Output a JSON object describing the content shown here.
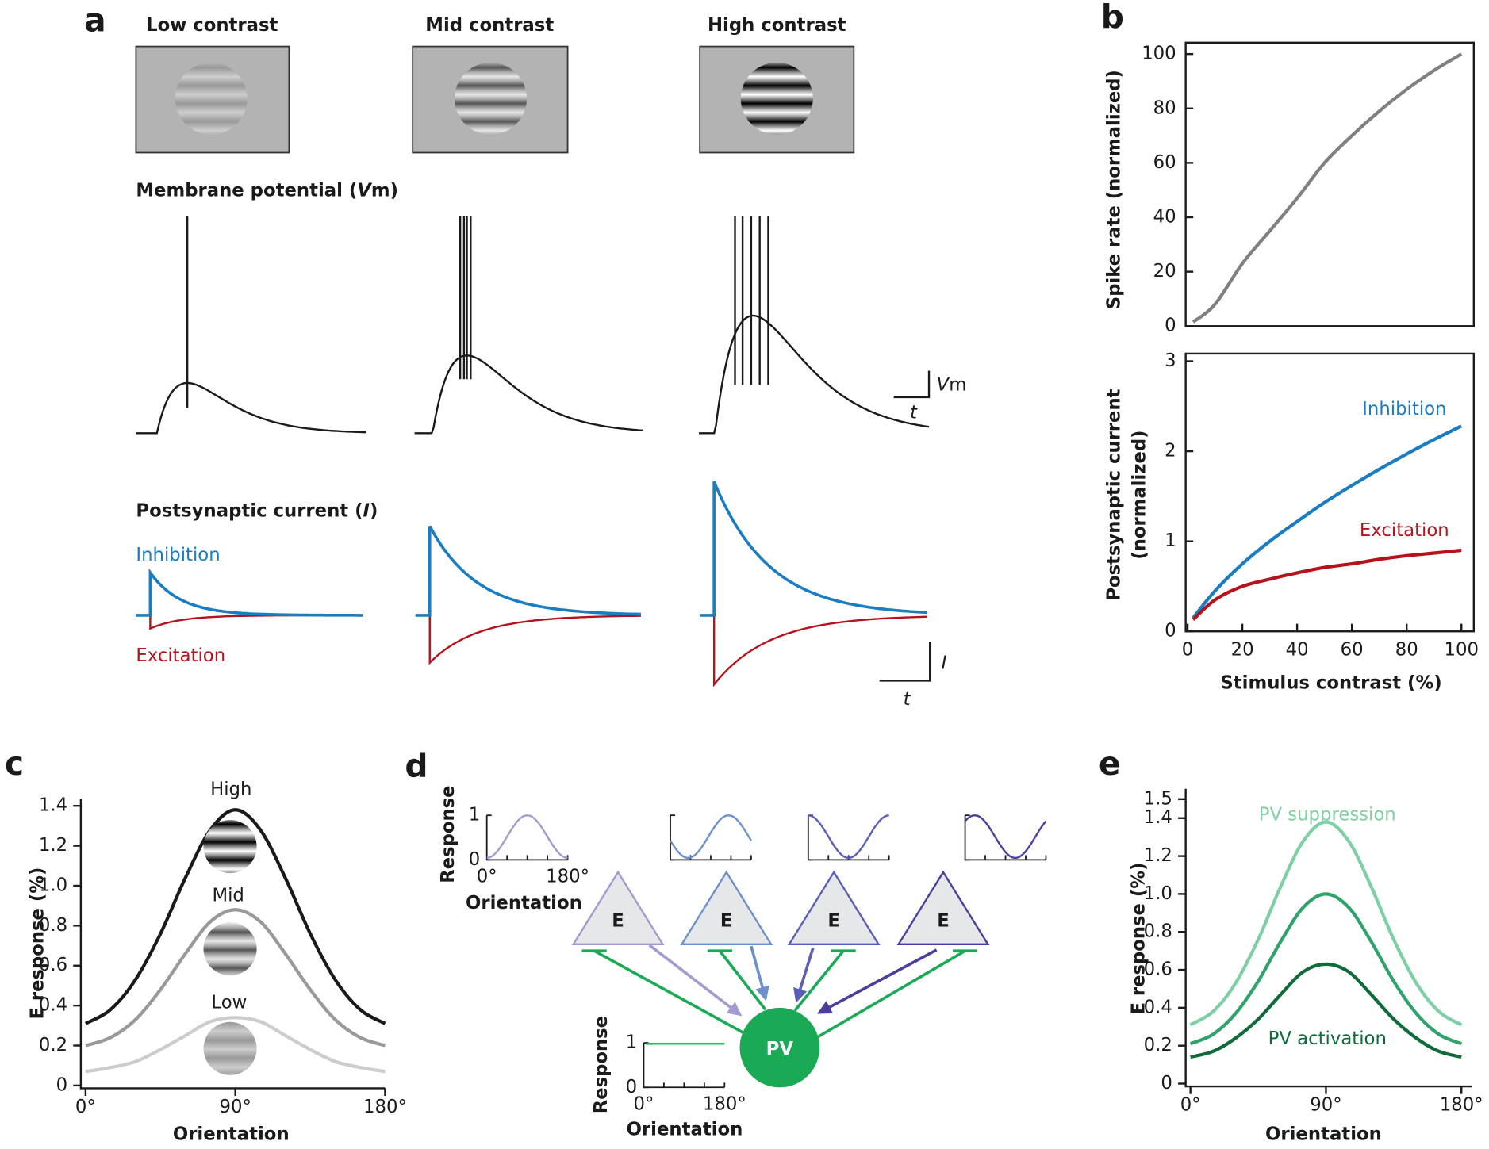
{
  "panel_a": {
    "label": "a",
    "stimuli": [
      "Low contrast",
      "Mid contrast",
      "High contrast"
    ],
    "vm_title": {
      "before": "Membrane potential (",
      "italic": "V",
      "after": "m)"
    },
    "current_title": {
      "before": "Postsynaptic current (",
      "italic": "I",
      "after": ")"
    },
    "inhibition": "Inhibition",
    "excitation": "Excitation",
    "vm_scale": {
      "italic": "V",
      "rest": "m",
      "time": "t"
    },
    "current_scale": {
      "italic": "I",
      "time": "t"
    }
  },
  "panel_d": {
    "label": "d",
    "neurons": [
      "E",
      "E",
      "E",
      "E"
    ],
    "pv": "PV",
    "tuning": {
      "ylabel": "Response",
      "xlabel": "Orientation",
      "yticks": [
        0,
        1
      ],
      "xticks": [
        {
          "value": 0,
          "label": "0°"
        },
        {
          "value": 180,
          "label": "180°"
        }
      ]
    },
    "pv_tuning": {
      "ylabel": "Response",
      "xlabel": "Orientation",
      "yticks": [
        0,
        1
      ],
      "xticks": [
        {
          "value": 0,
          "label": "0°"
        },
        {
          "value": 180,
          "label": "180°"
        }
      ]
    }
  },
  "chart_data": [
    {
      "type": "line",
      "panel_label": "b",
      "ylabel": "Spike rate (normalized)",
      "x": [
        2,
        10,
        20,
        30,
        40,
        50,
        60,
        70,
        80,
        90,
        100
      ],
      "series": [
        {
          "color": "#808080",
          "values": [
            1.5,
            8,
            23,
            35,
            47,
            60,
            70,
            79,
            87,
            94,
            100
          ]
        }
      ],
      "xlim": [
        0,
        100
      ],
      "ylim": [
        0,
        100
      ],
      "yticks": [
        0,
        20,
        40,
        60,
        80,
        100
      ]
    },
    {
      "type": "line",
      "ylabel": [
        "Postsynaptic current",
        "(normalized)"
      ],
      "xlabel": "Stimulus contrast (%)",
      "x": [
        2,
        10,
        20,
        30,
        40,
        50,
        60,
        70,
        80,
        90,
        100
      ],
      "series": [
        {
          "name": "Inhibition",
          "color": "#1a7cc1",
          "values": [
            0.15,
            0.45,
            0.75,
            1.0,
            1.22,
            1.43,
            1.62,
            1.8,
            1.97,
            2.13,
            2.28
          ]
        },
        {
          "name": "Excitation",
          "color": "#b5121b",
          "values": [
            0.13,
            0.35,
            0.5,
            0.58,
            0.65,
            0.71,
            0.75,
            0.8,
            0.84,
            0.87,
            0.9
          ]
        }
      ],
      "xlim": [
        0,
        100
      ],
      "ylim": [
        0,
        3
      ],
      "xticks": [
        0,
        20,
        40,
        60,
        80,
        100
      ],
      "yticks": [
        0,
        1,
        2,
        3
      ]
    },
    {
      "type": "line",
      "panel_label": "c",
      "ylabel": "E response (%)",
      "xlabel": "Orientation",
      "x": [
        0,
        15,
        30,
        45,
        60,
        75,
        90,
        105,
        120,
        135,
        150,
        165,
        180
      ],
      "series": [
        {
          "name": "High",
          "color": "#1a1a1a",
          "values": [
            0.31,
            0.38,
            0.53,
            0.76,
            1.04,
            1.28,
            1.38,
            1.28,
            1.04,
            0.76,
            0.53,
            0.38,
            0.31
          ]
        },
        {
          "name": "Mid",
          "color": "#999999",
          "values": [
            0.2,
            0.24,
            0.33,
            0.48,
            0.66,
            0.82,
            0.88,
            0.82,
            0.66,
            0.48,
            0.33,
            0.24,
            0.2
          ]
        },
        {
          "name": "Low",
          "color": "#cccccc",
          "values": [
            0.07,
            0.09,
            0.12,
            0.18,
            0.25,
            0.32,
            0.34,
            0.32,
            0.25,
            0.18,
            0.12,
            0.09,
            0.07
          ]
        }
      ],
      "xlim": [
        0,
        180
      ],
      "ylim": [
        0,
        1.4
      ],
      "xticks": [
        {
          "value": 0,
          "label": "0°"
        },
        {
          "value": 90,
          "label": "90°"
        },
        {
          "value": 180,
          "label": "180°"
        }
      ],
      "yticks": [
        0,
        0.2,
        0.4,
        0.6,
        0.8,
        {
          "value": 1,
          "label": "1.0"
        },
        1.2,
        1.4
      ]
    },
    {
      "type": "line",
      "panel_label": "e",
      "ylabel": "E response (%)",
      "xlabel": "Orientation",
      "x": [
        0,
        15,
        30,
        45,
        60,
        75,
        90,
        105,
        120,
        135,
        150,
        165,
        180
      ],
      "series": [
        {
          "name": "PV suppression",
          "color": "#7fcfa5",
          "values": [
            0.31,
            0.38,
            0.53,
            0.76,
            1.04,
            1.28,
            1.38,
            1.28,
            1.04,
            0.76,
            0.53,
            0.38,
            0.31
          ]
        },
        {
          "color": "#2fa36b",
          "values": [
            0.21,
            0.26,
            0.37,
            0.54,
            0.75,
            0.93,
            1.0,
            0.93,
            0.75,
            0.54,
            0.37,
            0.26,
            0.21
          ]
        },
        {
          "name": "PV activation",
          "color": "#0f6b3a",
          "values": [
            0.14,
            0.17,
            0.24,
            0.34,
            0.47,
            0.59,
            0.63,
            0.59,
            0.47,
            0.34,
            0.24,
            0.17,
            0.14
          ]
        }
      ],
      "xlim": [
        0,
        180
      ],
      "ylim": [
        0,
        1.5
      ],
      "xticks": [
        {
          "value": 0,
          "label": "0°"
        },
        {
          "value": 90,
          "label": "90°"
        },
        {
          "value": 180,
          "label": "180°"
        }
      ],
      "yticks": [
        0,
        0.2,
        0.4,
        0.6,
        0.8,
        {
          "value": 1,
          "label": "1.0"
        },
        1.2,
        1.4,
        1.5
      ]
    }
  ]
}
